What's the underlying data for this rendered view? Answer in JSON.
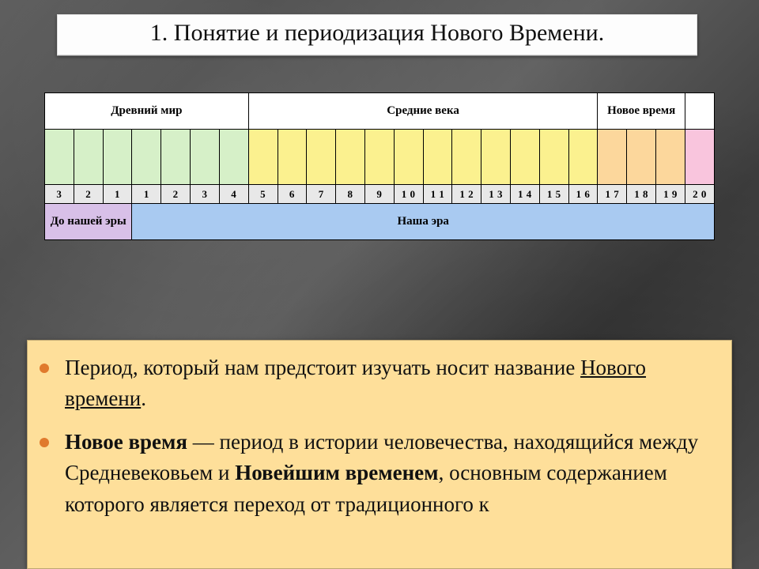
{
  "title": "1. Понятие  и периодизация Нового Времени.",
  "timeline": {
    "periods": [
      {
        "label": "Древний мир",
        "span": 7
      },
      {
        "label": "Средние века",
        "span": 12
      },
      {
        "label": "Новое время",
        "span": 3
      },
      {
        "label": "",
        "span": 1
      }
    ],
    "centuries": [
      {
        "n": "3",
        "color": "#d6f0c8"
      },
      {
        "n": "2",
        "color": "#d6f0c8"
      },
      {
        "n": "1",
        "color": "#d6f0c8"
      },
      {
        "n": "1",
        "color": "#d6f0c8"
      },
      {
        "n": "2",
        "color": "#d6f0c8"
      },
      {
        "n": "3",
        "color": "#d6f0c8"
      },
      {
        "n": "4",
        "color": "#d6f0c8"
      },
      {
        "n": "5",
        "color": "#fbf18f"
      },
      {
        "n": "6",
        "color": "#fbf18f"
      },
      {
        "n": "7",
        "color": "#fbf18f"
      },
      {
        "n": "8",
        "color": "#fbf18f"
      },
      {
        "n": "9",
        "color": "#fbf18f"
      },
      {
        "n": "1 0",
        "color": "#fbf18f"
      },
      {
        "n": "1 1",
        "color": "#fbf18f"
      },
      {
        "n": "1 2",
        "color": "#fbf18f"
      },
      {
        "n": "1 3",
        "color": "#fbf18f"
      },
      {
        "n": "1 4",
        "color": "#fbf18f"
      },
      {
        "n": "1 5",
        "color": "#fbf18f"
      },
      {
        "n": "1 6",
        "color": "#fbf18f"
      },
      {
        "n": "1 7",
        "color": "#fcd79c"
      },
      {
        "n": "1 8",
        "color": "#fcd79c"
      },
      {
        "n": "1 9",
        "color": "#fcd79c"
      },
      {
        "n": "2 0",
        "color": "#f9c5dd"
      }
    ],
    "nums_bg": "#e8e8e8",
    "eras": [
      {
        "label": "До нашей эры",
        "span": 3,
        "bg": "#d8c0e8"
      },
      {
        "label": "Наша эра",
        "span": 20,
        "bg": "#a9caf1"
      }
    ]
  },
  "bullets": {
    "item1_a": "Период, который нам предстоит изучать носит название ",
    "item1_u": "Нового времени",
    "item1_b": ".",
    "item2_a": "Новое время",
    "item2_b": " — период в истории человечества, находящийся между Средневековьем и ",
    "item2_c": "Новейшим временем",
    "item2_d": ", основным содержанием которого является переход от традиционного к"
  },
  "style": {
    "title_fontsize": 30,
    "body_fontsize": 27,
    "bullet_color": "#e07a2d",
    "textbox_bg": "#fedf9a"
  }
}
